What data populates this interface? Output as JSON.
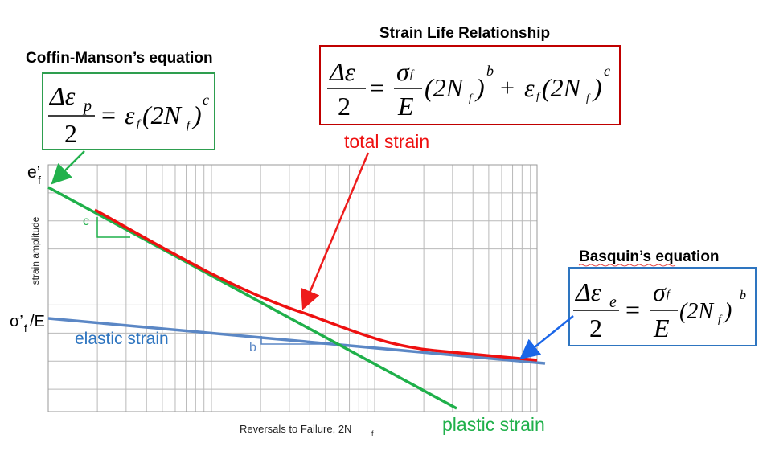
{
  "title": "Strain Life Relationship",
  "equations": {
    "strain_life": {
      "tokens": [
        "Δε",
        "2",
        "=",
        "σ",
        "f",
        "E",
        "(2N",
        "f",
        ")",
        "b",
        "+",
        "ε",
        "f",
        "(2N",
        "f",
        ")",
        "c"
      ]
    },
    "coffin_manson": {
      "heading": "Coffin-Manson’s equation",
      "tokens": [
        "Δε",
        "p",
        "2",
        "=",
        "ε",
        "f",
        "(2N",
        "f",
        ")",
        "c"
      ]
    },
    "basquin": {
      "heading": "Basquin’s equation",
      "tokens": [
        "Δε",
        "e",
        "2",
        "=",
        "σ",
        "f",
        "E",
        "(2N",
        "f",
        ")",
        "b"
      ]
    }
  },
  "plot": {
    "y_axis_label": "strain amplitude",
    "x_axis_label": "Reversals to Failure, 2N",
    "x_axis_label_sub": "f",
    "y_marker_top": "e’",
    "y_marker_top_sub": "f",
    "y_marker_mid": "σ’",
    "y_marker_mid_sub": "f",
    "y_marker_mid_rest": "/E",
    "slope_c": "c",
    "slope_b": "b",
    "curves": {
      "total": "total strain",
      "elastic": "elastic strain",
      "plastic": "plastic strain"
    }
  }
}
